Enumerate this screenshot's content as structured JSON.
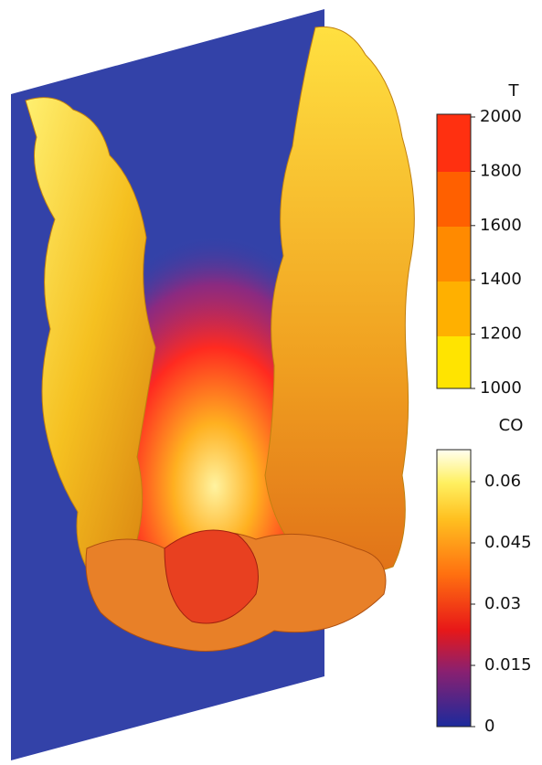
{
  "colorbars": [
    {
      "title": "T",
      "ticks": [
        2000,
        1800,
        1600,
        1400,
        1200,
        1000
      ]
    },
    {
      "title": "CO",
      "ticks": [
        0.06,
        0.045,
        0.03,
        0.015,
        0
      ]
    }
  ]
}
